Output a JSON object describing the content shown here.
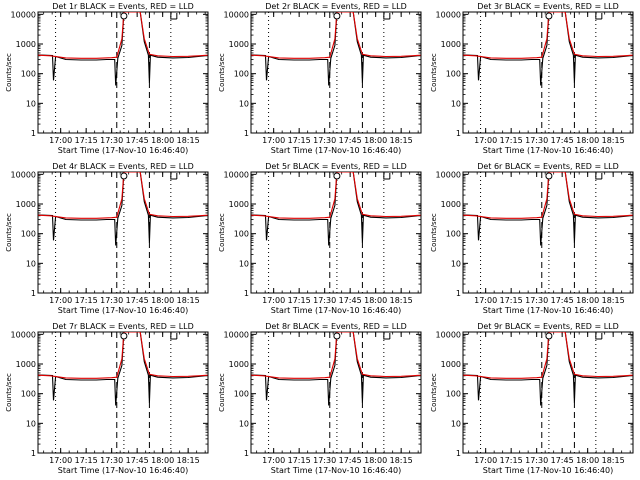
{
  "figure": {
    "panels": [
      {
        "title": "Det 1r BLACK = Events, RED = LLD"
      },
      {
        "title": "Det 2r BLACK = Events, RED = LLD"
      },
      {
        "title": "Det 3r BLACK = Events, RED = LLD"
      },
      {
        "title": "Det 4r BLACK = Events, RED = LLD"
      },
      {
        "title": "Det 5r BLACK = Events, RED = LLD"
      },
      {
        "title": "Det 6r BLACK = Events, RED = LLD"
      },
      {
        "title": "Det 7r BLACK = Events, RED = LLD"
      },
      {
        "title": "Det 8r BLACK = Events, RED = LLD"
      },
      {
        "title": "Det 9r BLACK = Events, RED = LLD"
      }
    ]
  },
  "chart_data": {
    "type": "line",
    "layout": "3x3 small multiples",
    "xlabel": "Start Time (17-Nov-10 16:46:40)",
    "ylabel": "Counts/sec",
    "xlim": [
      16.7778,
      18.4444
    ],
    "ylim": [
      1,
      12000
    ],
    "yscale": "log",
    "x_ticks": [
      17.0,
      17.25,
      17.5,
      17.75,
      18.0,
      18.25
    ],
    "x_tick_labels": [
      "17:00",
      "17:15",
      "17:30",
      "17:45",
      "18:00",
      "18:15"
    ],
    "y_ticks": [
      1,
      10,
      100,
      1000,
      10000
    ],
    "y_tick_labels": [
      "1",
      "10",
      "100",
      "1000",
      "10000"
    ],
    "dotted_lines_x": [
      16.95,
      17.62,
      18.08
    ],
    "dashed_lines_x": [
      17.55,
      17.87
    ],
    "markers": [
      {
        "x": 17.62,
        "symbol": "o"
      },
      {
        "x": 18.08,
        "symbol": "square-bracket"
      }
    ],
    "series": [
      {
        "name": "LLD",
        "color": "#e00000",
        "points": [
          [
            16.78,
            420
          ],
          [
            16.9,
            400
          ],
          [
            17.05,
            340
          ],
          [
            17.2,
            330
          ],
          [
            17.35,
            330
          ],
          [
            17.5,
            345
          ],
          [
            17.55,
            360
          ],
          [
            17.6,
            1500
          ],
          [
            17.62,
            12000
          ],
          [
            17.78,
            12000
          ],
          [
            17.82,
            1500
          ],
          [
            17.87,
            450
          ],
          [
            17.95,
            400
          ],
          [
            18.1,
            380
          ],
          [
            18.25,
            385
          ],
          [
            18.35,
            400
          ],
          [
            18.44,
            420
          ]
        ]
      },
      {
        "name": "Events",
        "color": "#000000",
        "points": [
          [
            16.78,
            430
          ],
          [
            16.92,
            410
          ],
          [
            16.93,
            60
          ],
          [
            16.95,
            380
          ],
          [
            17.05,
            300
          ],
          [
            17.2,
            290
          ],
          [
            17.35,
            290
          ],
          [
            17.45,
            300
          ],
          [
            17.53,
            300
          ],
          [
            17.54,
            40
          ],
          [
            17.56,
            330
          ],
          [
            17.6,
            900
          ],
          [
            17.62,
            12000
          ],
          [
            17.78,
            12000
          ],
          [
            17.82,
            1200
          ],
          [
            17.86,
            420
          ],
          [
            17.87,
            50
          ],
          [
            17.88,
            420
          ],
          [
            17.95,
            360
          ],
          [
            18.1,
            340
          ],
          [
            18.25,
            350
          ],
          [
            18.35,
            380
          ],
          [
            18.44,
            410
          ]
        ]
      }
    ]
  }
}
